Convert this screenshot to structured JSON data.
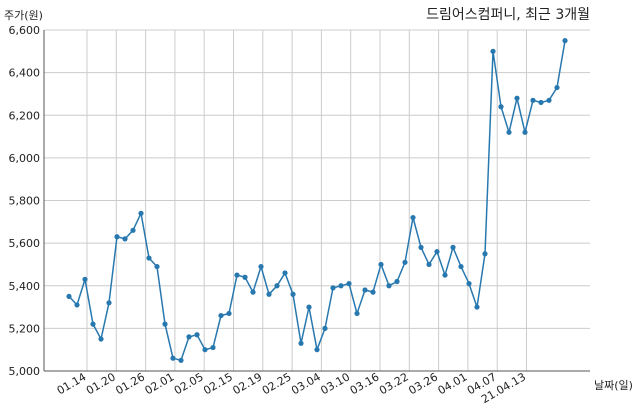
{
  "chart_data": {
    "type": "line",
    "title": "드림어스컴퍼니, 최근 3개월",
    "ylabel": "주가(원)",
    "xlabel": "날짜(일)",
    "ylim": [
      5000,
      6600
    ],
    "grid": true,
    "y_ticks": [
      "5,000",
      "5,200",
      "5,400",
      "5,600",
      "5,800",
      "6,000",
      "6,200",
      "6,400",
      "6,600"
    ],
    "x_ticks": [
      "01.14",
      "01.20",
      "01.26",
      "02.01",
      "02.05",
      "02.15",
      "02.19",
      "02.25",
      "03.04",
      "03.10",
      "03.16",
      "03.22",
      "03.26",
      "04.01",
      "04.07",
      "21.04.13"
    ],
    "color": "#2878b0",
    "series": [
      {
        "values": [
          5350,
          5310,
          5430,
          5220,
          5150,
          5320,
          5630,
          5620,
          5660,
          5740,
          5530,
          5490,
          5220,
          5060,
          5050,
          5160,
          5170,
          5100,
          5110,
          5260,
          5270,
          5450,
          5440,
          5370,
          5490,
          5360,
          5400,
          5460,
          5360,
          5130,
          5300,
          5100,
          5200,
          5390,
          5400,
          5410,
          5270,
          5380,
          5370,
          5500,
          5400,
          5420,
          5510,
          5720,
          5580,
          5500,
          5560,
          5450,
          5580,
          5490,
          5410,
          5300,
          5550,
          6500,
          6240,
          6120,
          6280,
          6120,
          6270,
          6260,
          6270,
          6330,
          6550
        ]
      }
    ]
  }
}
